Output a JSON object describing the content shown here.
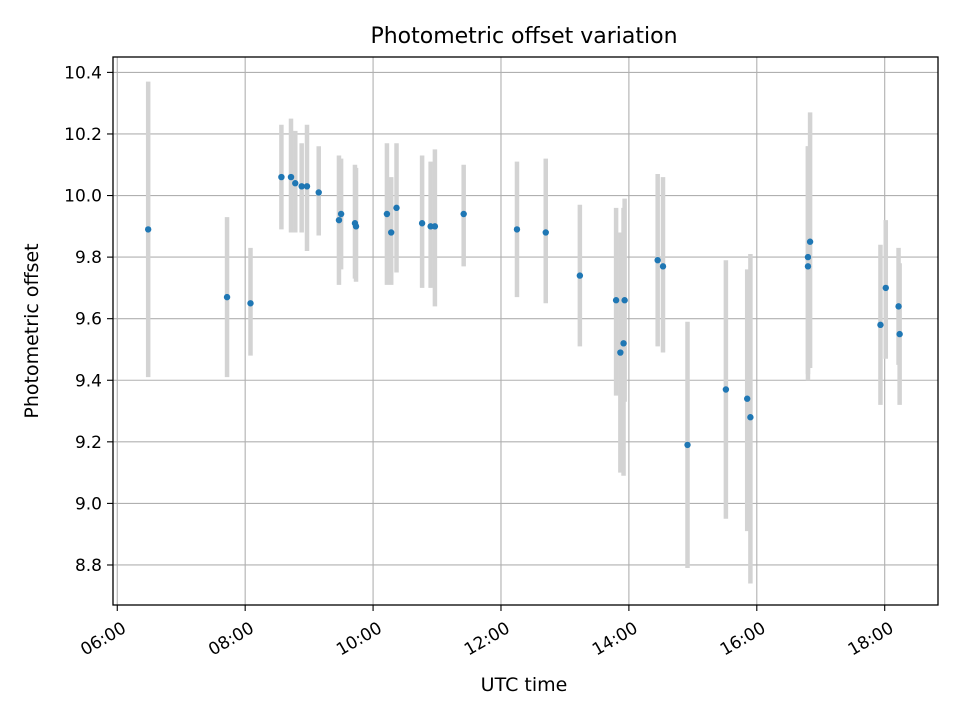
{
  "chart_data": {
    "type": "scatter",
    "title": "Photometric offset variation",
    "xlabel": "UTC time",
    "ylabel": "Photometric offset",
    "x_unit": "hours UTC",
    "xlim": [
      "05:56",
      "18:50"
    ],
    "ylim": [
      8.67,
      10.45
    ],
    "x_ticks": [
      "06:00",
      "08:00",
      "10:00",
      "12:00",
      "14:00",
      "16:00",
      "18:00"
    ],
    "y_ticks": [
      "8.8",
      "9.0",
      "9.2",
      "9.4",
      "9.6",
      "9.8",
      "10.0",
      "10.2",
      "10.4"
    ],
    "grid": true,
    "legend": "none",
    "colors": {
      "point": "#1f77b4",
      "errorbar": "#d3d3d3",
      "grid": "#b0b0b0"
    },
    "series": [
      {
        "points": [
          {
            "t": "06:29",
            "y": 9.89,
            "lo": 9.41,
            "hi": 10.37
          },
          {
            "t": "07:43",
            "y": 9.67,
            "lo": 9.41,
            "hi": 9.93
          },
          {
            "t": "08:05",
            "y": 9.65,
            "lo": 9.48,
            "hi": 9.83
          },
          {
            "t": "08:34",
            "y": 10.06,
            "lo": 9.89,
            "hi": 10.23
          },
          {
            "t": "08:43",
            "y": 10.06,
            "lo": 9.88,
            "hi": 10.25
          },
          {
            "t": "08:47",
            "y": 10.04,
            "lo": 9.88,
            "hi": 10.21
          },
          {
            "t": "08:53",
            "y": 10.03,
            "lo": 9.88,
            "hi": 10.17
          },
          {
            "t": "08:58",
            "y": 10.03,
            "lo": 9.82,
            "hi": 10.23
          },
          {
            "t": "09:09",
            "y": 10.01,
            "lo": 9.87,
            "hi": 10.16
          },
          {
            "t": "09:28",
            "y": 9.92,
            "lo": 9.71,
            "hi": 10.13
          },
          {
            "t": "09:30",
            "y": 9.94,
            "lo": 9.76,
            "hi": 10.12
          },
          {
            "t": "09:43",
            "y": 9.91,
            "lo": 9.73,
            "hi": 10.1
          },
          {
            "t": "09:44",
            "y": 9.9,
            "lo": 9.72,
            "hi": 10.09
          },
          {
            "t": "10:13",
            "y": 9.94,
            "lo": 9.71,
            "hi": 10.17
          },
          {
            "t": "10:17",
            "y": 9.88,
            "lo": 9.71,
            "hi": 10.06
          },
          {
            "t": "10:22",
            "y": 9.96,
            "lo": 9.75,
            "hi": 10.17
          },
          {
            "t": "10:46",
            "y": 9.91,
            "lo": 9.7,
            "hi": 10.13
          },
          {
            "t": "10:54",
            "y": 9.9,
            "lo": 9.7,
            "hi": 10.11
          },
          {
            "t": "10:58",
            "y": 9.9,
            "lo": 9.64,
            "hi": 10.15
          },
          {
            "t": "11:25",
            "y": 9.94,
            "lo": 9.77,
            "hi": 10.1
          },
          {
            "t": "12:15",
            "y": 9.89,
            "lo": 9.67,
            "hi": 10.11
          },
          {
            "t": "12:42",
            "y": 9.88,
            "lo": 9.65,
            "hi": 10.12
          },
          {
            "t": "13:14",
            "y": 9.74,
            "lo": 9.51,
            "hi": 9.97
          },
          {
            "t": "13:48",
            "y": 9.66,
            "lo": 9.35,
            "hi": 9.96
          },
          {
            "t": "13:52",
            "y": 9.49,
            "lo": 9.1,
            "hi": 9.88
          },
          {
            "t": "13:55",
            "y": 9.52,
            "lo": 9.09,
            "hi": 9.96
          },
          {
            "t": "13:56",
            "y": 9.66,
            "lo": 9.33,
            "hi": 9.99
          },
          {
            "t": "14:27",
            "y": 9.79,
            "lo": 9.51,
            "hi": 10.07
          },
          {
            "t": "14:32",
            "y": 9.77,
            "lo": 9.49,
            "hi": 10.06
          },
          {
            "t": "14:55",
            "y": 9.19,
            "lo": 8.79,
            "hi": 9.59
          },
          {
            "t": "15:31",
            "y": 9.37,
            "lo": 8.95,
            "hi": 9.79
          },
          {
            "t": "15:51",
            "y": 9.34,
            "lo": 8.91,
            "hi": 9.76
          },
          {
            "t": "15:54",
            "y": 9.28,
            "lo": 8.74,
            "hi": 9.81
          },
          {
            "t": "16:48",
            "y": 9.8,
            "lo": 9.4,
            "hi": 10.16
          },
          {
            "t": "16:48",
            "y": 9.77,
            "lo": 9.42,
            "hi": 10.16
          },
          {
            "t": "16:50",
            "y": 9.85,
            "lo": 9.44,
            "hi": 10.27
          },
          {
            "t": "17:56",
            "y": 9.58,
            "lo": 9.32,
            "hi": 9.84
          },
          {
            "t": "18:01",
            "y": 9.7,
            "lo": 9.47,
            "hi": 9.92
          },
          {
            "t": "18:13",
            "y": 9.64,
            "lo": 9.45,
            "hi": 9.83
          },
          {
            "t": "18:14",
            "y": 9.55,
            "lo": 9.32,
            "hi": 9.78
          }
        ]
      }
    ]
  }
}
